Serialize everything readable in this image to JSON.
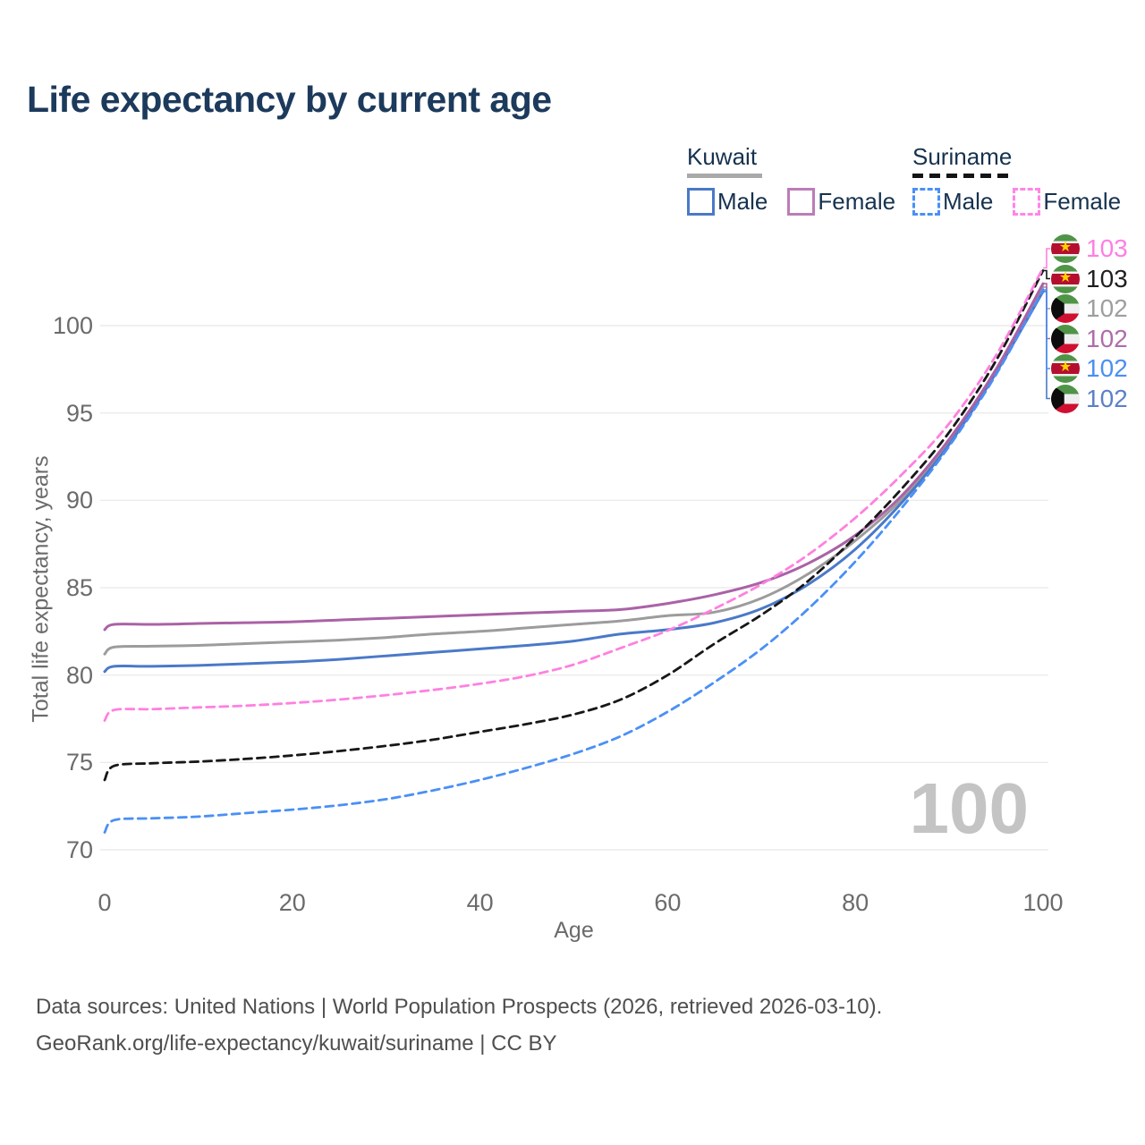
{
  "title": "Life expectancy by current age",
  "legend": {
    "groups": [
      {
        "name": "Kuwait",
        "line_color": "#a9a9a9",
        "line_style": "solid",
        "items": [
          {
            "label": "Male",
            "color": "#4a79c8",
            "style": "solid"
          },
          {
            "label": "Female",
            "color": "#bc7cb8",
            "style": "solid"
          }
        ]
      },
      {
        "name": "Suriname",
        "line_color": "#141414",
        "line_style": "dashed",
        "items": [
          {
            "label": "Male",
            "color": "#4a90f5",
            "style": "dashed"
          },
          {
            "label": "Female",
            "color": "#ff85e8",
            "style": "dashed"
          }
        ]
      }
    ]
  },
  "chart_data": {
    "type": "line",
    "title": "Life expectancy by current age",
    "xlabel": "Age",
    "ylabel": "Total life expectancy, years",
    "xlim": [
      0,
      100
    ],
    "ylim": [
      70,
      103.5
    ],
    "xticks": [
      0,
      20,
      40,
      60,
      80,
      100
    ],
    "yticks": [
      70,
      75,
      80,
      85,
      90,
      95,
      100
    ],
    "grid": "horizontal-only",
    "watermark": "100",
    "x_ages": [
      0,
      1,
      5,
      10,
      15,
      20,
      25,
      30,
      35,
      40,
      45,
      50,
      55,
      60,
      65,
      70,
      75,
      80,
      85,
      90,
      95,
      100
    ],
    "series": [
      {
        "name": "Kuwait (both sexes)",
        "country": "kuwait",
        "color": "#9c9c9c",
        "dashed": false,
        "label_row": 2,
        "values": [
          81.2,
          81.6,
          81.65,
          81.7,
          81.8,
          81.9,
          82.0,
          82.15,
          82.35,
          82.5,
          82.7,
          82.9,
          83.1,
          83.4,
          83.6,
          84.4,
          85.8,
          87.7,
          90.1,
          93.35,
          97.4,
          102.2
        ]
      },
      {
        "name": "Kuwait Male",
        "country": "kuwait",
        "color": "#4a79c8",
        "dashed": false,
        "label_row": 5,
        "values": [
          80.2,
          80.5,
          80.5,
          80.55,
          80.65,
          80.75,
          80.9,
          81.1,
          81.3,
          81.5,
          81.7,
          81.95,
          82.35,
          82.6,
          83.0,
          83.8,
          85.2,
          87.2,
          89.9,
          93.2,
          97.3,
          101.95
        ]
      },
      {
        "name": "Kuwait Female",
        "country": "kuwait",
        "color": "#aa62a6",
        "dashed": false,
        "label_row": 3,
        "values": [
          82.6,
          82.9,
          82.9,
          82.95,
          83.0,
          83.05,
          83.15,
          83.25,
          83.35,
          83.45,
          83.55,
          83.65,
          83.75,
          84.1,
          84.6,
          85.3,
          86.4,
          88.0,
          90.3,
          93.5,
          97.5,
          102.4
        ]
      },
      {
        "name": "Suriname (both sexes)",
        "country": "suriname",
        "color": "#171717",
        "dashed": true,
        "label_row": 1,
        "values": [
          74.0,
          74.8,
          74.95,
          75.05,
          75.2,
          75.4,
          75.65,
          75.95,
          76.3,
          76.75,
          77.2,
          77.75,
          78.6,
          80.0,
          81.8,
          83.45,
          85.4,
          87.9,
          90.7,
          93.9,
          98.0,
          103.15
        ]
      },
      {
        "name": "Suriname Male",
        "country": "suriname",
        "color": "#4a90f5",
        "dashed": true,
        "label_row": 4,
        "values": [
          71.0,
          71.7,
          71.8,
          71.9,
          72.1,
          72.3,
          72.55,
          72.9,
          73.4,
          74.0,
          74.7,
          75.5,
          76.5,
          77.9,
          79.6,
          81.5,
          83.8,
          86.5,
          89.6,
          93.1,
          97.2,
          102.05
        ]
      },
      {
        "name": "Suriname Female",
        "country": "suriname",
        "color": "#ff80e0",
        "dashed": true,
        "label_row": 0,
        "values": [
          77.4,
          78.0,
          78.05,
          78.15,
          78.25,
          78.4,
          78.6,
          78.85,
          79.15,
          79.5,
          79.95,
          80.6,
          81.55,
          82.55,
          83.8,
          85.2,
          86.9,
          89.0,
          91.5,
          94.4,
          98.3,
          103.3
        ]
      }
    ],
    "end_labels": [
      {
        "value": "103",
        "color": "#ff7ee3",
        "flag": "suriname",
        "series": "Suriname Female"
      },
      {
        "value": "103",
        "color": "#1f1f1f",
        "flag": "suriname",
        "series": "Suriname (both sexes)"
      },
      {
        "value": "102",
        "color": "#9e9e9e",
        "flag": "kuwait",
        "series": "Kuwait (both sexes)"
      },
      {
        "value": "102",
        "color": "#ae6cab",
        "flag": "kuwait",
        "series": "Kuwait Female"
      },
      {
        "value": "102",
        "color": "#4a8ff2",
        "flag": "suriname",
        "series": "Suriname Male"
      },
      {
        "value": "102",
        "color": "#5b80c8",
        "flag": "kuwait",
        "series": "Kuwait Male"
      }
    ]
  },
  "footer": {
    "line1": "Data sources: United Nations | World Population Prospects (2026, retrieved 2026-03-10).",
    "line2": "GeoRank.org/life-expectancy/kuwait/suriname | CC BY"
  }
}
